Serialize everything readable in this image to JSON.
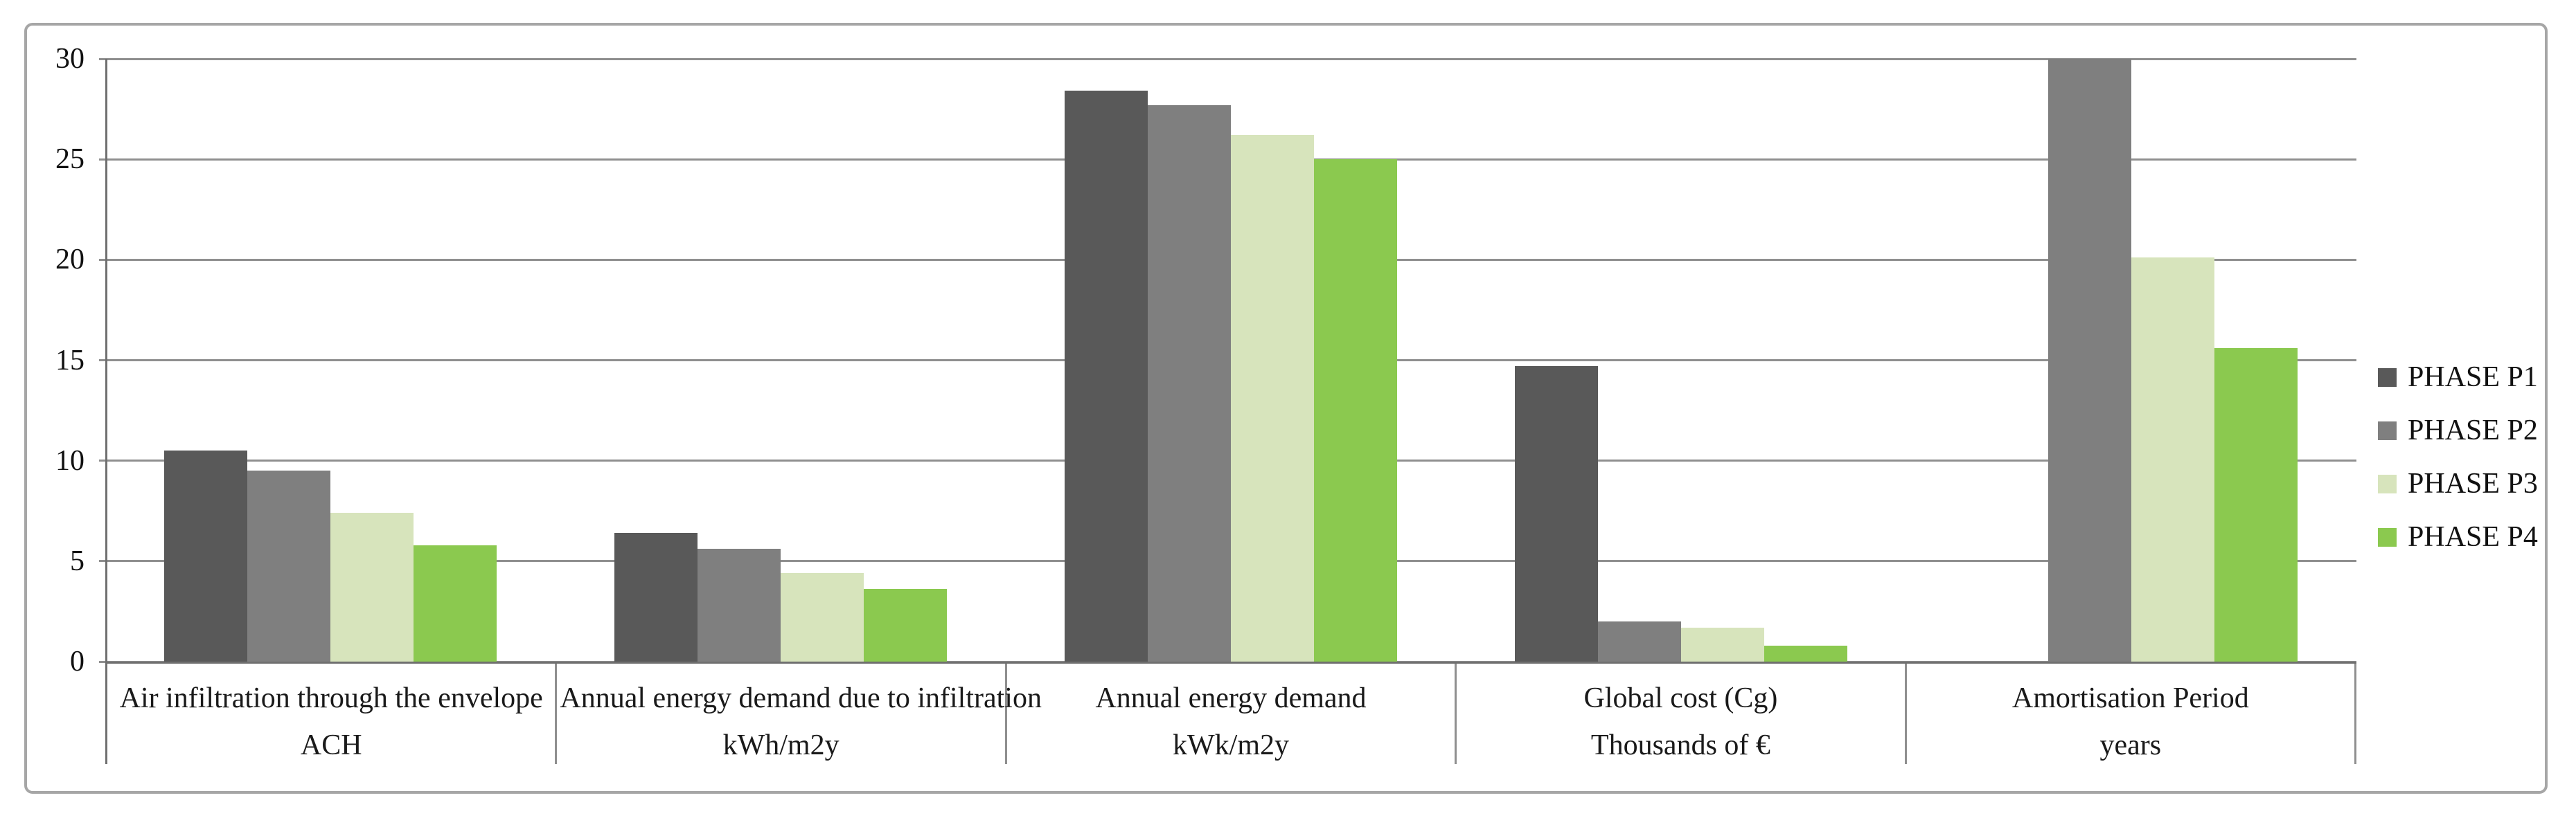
{
  "chart_data": {
    "type": "bar",
    "title": "",
    "categories": [
      {
        "label": "Air infiltration through the envelope",
        "unit": "ACH"
      },
      {
        "label": "Annual energy demand due to infiltration",
        "unit": "kWh/m2y"
      },
      {
        "label": "Annual energy demand",
        "unit": "kWk/m2y"
      },
      {
        "label": "Global cost (Cg)",
        "unit": "Thousands of €"
      },
      {
        "label": "Amortisation Period",
        "unit": "years"
      }
    ],
    "series": [
      {
        "name": "PHASE P1",
        "color": "#595959",
        "values": [
          10.5,
          6.4,
          28.4,
          14.7,
          0
        ]
      },
      {
        "name": "PHASE P2",
        "color": "#7f7f7f",
        "values": [
          9.5,
          5.6,
          27.7,
          2.0,
          30.0
        ]
      },
      {
        "name": "PHASE P3",
        "color": "#d7e4bc",
        "values": [
          7.4,
          4.4,
          26.2,
          1.7,
          20.1
        ]
      },
      {
        "name": "PHASE P4",
        "color": "#8bc94f",
        "values": [
          5.8,
          3.6,
          25.0,
          0.8,
          15.6
        ]
      }
    ],
    "ylim": [
      0,
      30
    ],
    "yticks": [
      0,
      5,
      10,
      15,
      20,
      25,
      30
    ],
    "grid": true,
    "legend_position": "right",
    "colors": {
      "gridline": "#8f8f8f",
      "axis": "#6f6f6f",
      "outer_border": "#a6a6a6",
      "background": "#ffffff",
      "text": "#1a1a1a"
    }
  }
}
